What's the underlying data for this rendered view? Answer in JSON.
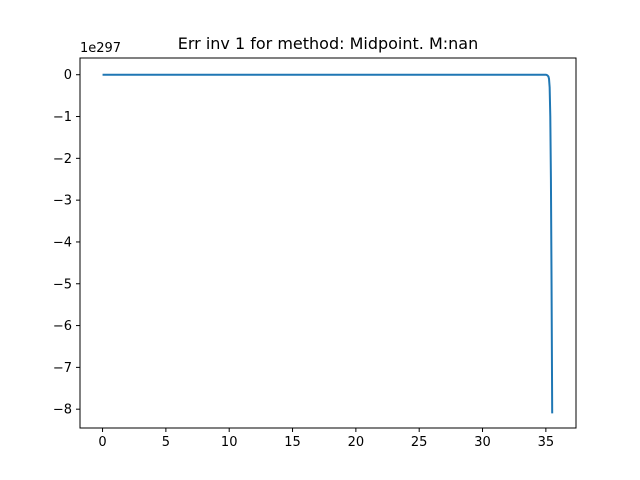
{
  "chart_data": {
    "type": "line",
    "title": "Err inv 1 for method: Midpoint. M:nan",
    "xlabel": "",
    "ylabel": "",
    "y_offset_label": "1e297",
    "xlim": [
      -1.78,
      37.38
    ],
    "ylim": [
      -8.45,
      0.4
    ],
    "x_ticks": [
      0,
      5,
      10,
      15,
      20,
      25,
      30,
      35
    ],
    "x_tick_labels": [
      "0",
      "5",
      "10",
      "15",
      "20",
      "25",
      "30",
      "35"
    ],
    "y_ticks": [
      0,
      -1,
      -2,
      -3,
      -4,
      -5,
      -6,
      -7,
      -8
    ],
    "y_tick_labels": [
      "0",
      "−1",
      "−2",
      "−3",
      "−4",
      "−5",
      "−6",
      "−7",
      "−8"
    ],
    "grid": false,
    "series": [
      {
        "color": "#1f77b4",
        "x": [
          0,
          5,
          10,
          15,
          20,
          25,
          30,
          35,
          35.1,
          35.2,
          35.25,
          35.3,
          35.35,
          35.4,
          35.45,
          35.5
        ],
        "y": [
          0,
          0,
          0,
          0,
          0,
          0,
          0,
          0,
          -0.01,
          -0.04,
          -0.1,
          -0.3,
          -1.0,
          -2.5,
          -5.0,
          -8.1
        ]
      }
    ]
  }
}
